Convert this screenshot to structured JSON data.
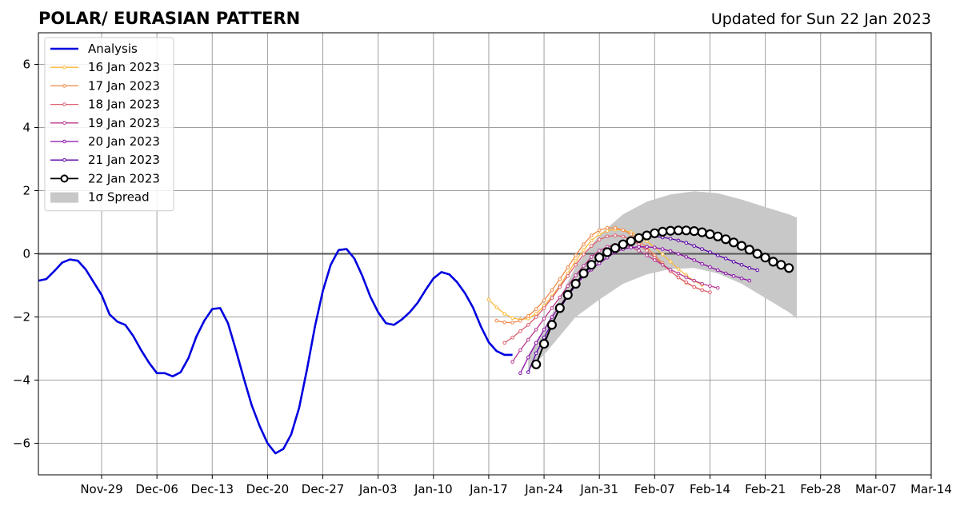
{
  "chart_data": {
    "type": "line",
    "title": "POLAR/ EURASIAN  PATTERN",
    "subtitle": "Updated for Sun 22 Jan 2023",
    "xlabel": "",
    "ylabel": "",
    "xlim": [
      "2022-11-21",
      "2023-03-14"
    ],
    "ylim": [
      -7,
      7
    ],
    "grid": true,
    "legend_position": "top-left",
    "x_ticks": [
      {
        "date": "2022-11-29",
        "label": "Nov-29"
      },
      {
        "date": "2022-12-06",
        "label": "Dec-06"
      },
      {
        "date": "2022-12-13",
        "label": "Dec-13"
      },
      {
        "date": "2022-12-20",
        "label": "Dec-20"
      },
      {
        "date": "2022-12-27",
        "label": "Dec-27"
      },
      {
        "date": "2023-01-03",
        "label": "Jan-03"
      },
      {
        "date": "2023-01-10",
        "label": "Jan-10"
      },
      {
        "date": "2023-01-17",
        "label": "Jan-17"
      },
      {
        "date": "2023-01-24",
        "label": "Jan-24"
      },
      {
        "date": "2023-01-31",
        "label": "Jan-31"
      },
      {
        "date": "2023-02-07",
        "label": "Feb-07"
      },
      {
        "date": "2023-02-14",
        "label": "Feb-14"
      },
      {
        "date": "2023-02-21",
        "label": "Feb-21"
      },
      {
        "date": "2023-02-28",
        "label": "Feb-28"
      },
      {
        "date": "2023-03-07",
        "label": "Mar-07"
      },
      {
        "date": "2023-03-14",
        "label": "Mar-14"
      }
    ],
    "y_ticks": [
      {
        "value": 6,
        "label": "6"
      },
      {
        "value": 4,
        "label": "4"
      },
      {
        "value": 2,
        "label": "2"
      },
      {
        "value": 0,
        "label": "0"
      },
      {
        "value": -2,
        "label": "−2"
      },
      {
        "value": -4,
        "label": "−4"
      },
      {
        "value": -6,
        "label": "−6"
      }
    ],
    "analysis": {
      "name": "Analysis",
      "color": "#0000e0",
      "start": "2022-11-21",
      "values": [
        -0.85,
        -0.8,
        -0.55,
        -0.28,
        -0.18,
        -0.22,
        -0.5,
        -0.9,
        -1.3,
        -1.92,
        -2.15,
        -2.25,
        -2.6,
        -3.05,
        -3.45,
        -3.78,
        -3.78,
        -3.88,
        -3.75,
        -3.3,
        -2.62,
        -2.12,
        -1.75,
        -1.72,
        -2.2,
        -3.05,
        -3.95,
        -4.8,
        -5.45,
        -6.0,
        -6.32,
        -6.18,
        -5.72,
        -4.88,
        -3.65,
        -2.3,
        -1.18,
        -0.35,
        0.12,
        0.15,
        -0.15,
        -0.7,
        -1.35,
        -1.85,
        -2.2,
        -2.25,
        -2.08,
        -1.85,
        -1.55,
        -1.15,
        -0.78,
        -0.58,
        -0.65,
        -0.9,
        -1.25,
        -1.7,
        -2.3,
        -2.8,
        -3.08,
        -3.2,
        -3.2
      ]
    },
    "spread": {
      "name": "1σ Spread",
      "color": "#c8c8c8",
      "points": [
        {
          "date": "2023-01-22",
          "upper": -3.2,
          "lower": -3.7
        },
        {
          "date": "2023-01-24",
          "upper": -2.4,
          "lower": -3.2
        },
        {
          "date": "2023-01-26",
          "upper": -1.4,
          "lower": -2.6
        },
        {
          "date": "2023-01-28",
          "upper": -0.4,
          "lower": -2.0
        },
        {
          "date": "2023-01-31",
          "upper": 0.6,
          "lower": -1.45
        },
        {
          "date": "2023-02-03",
          "upper": 1.25,
          "lower": -0.95
        },
        {
          "date": "2023-02-06",
          "upper": 1.65,
          "lower": -0.65
        },
        {
          "date": "2023-02-09",
          "upper": 1.88,
          "lower": -0.48
        },
        {
          "date": "2023-02-12",
          "upper": 1.98,
          "lower": -0.45
        },
        {
          "date": "2023-02-15",
          "upper": 1.92,
          "lower": -0.62
        },
        {
          "date": "2023-02-18",
          "upper": 1.72,
          "lower": -0.95
        },
        {
          "date": "2023-02-21",
          "upper": 1.48,
          "lower": -1.4
        },
        {
          "date": "2023-02-24",
          "upper": 1.25,
          "lower": -1.85
        },
        {
          "date": "2023-02-25",
          "upper": 1.15,
          "lower": -2.05
        }
      ]
    },
    "series": [
      {
        "name": "16 Jan 2023",
        "color": "#f8b83a",
        "start": "2023-01-17",
        "values": [
          -1.45,
          -1.7,
          -1.9,
          -2.03,
          -2.08,
          -2.05,
          -1.9,
          -1.65,
          -1.35,
          -1.0,
          -0.62,
          -0.22,
          0.12,
          0.42,
          0.62,
          0.73,
          0.77,
          0.75,
          0.68,
          0.57,
          0.4,
          0.2,
          -0.02,
          -0.25,
          -0.48,
          -0.68,
          -0.86,
          -0.98
        ]
      },
      {
        "name": "17 Jan 2023",
        "color": "#ef8848",
        "start": "2023-01-18",
        "values": [
          -2.12,
          -2.17,
          -2.18,
          -2.12,
          -1.97,
          -1.75,
          -1.47,
          -1.15,
          -0.8,
          -0.43,
          -0.05,
          0.3,
          0.58,
          0.75,
          0.82,
          0.82,
          0.75,
          0.62,
          0.42,
          0.2,
          -0.05,
          -0.3,
          -0.55,
          -0.75,
          -0.92,
          -1.05,
          -1.15
        ]
      },
      {
        "name": "18 Jan 2023",
        "color": "#dc5f6e",
        "start": "2023-01-19",
        "values": [
          -2.82,
          -2.65,
          -2.45,
          -2.25,
          -2.0,
          -1.72,
          -1.4,
          -1.05,
          -0.7,
          -0.35,
          -0.02,
          0.25,
          0.45,
          0.55,
          0.58,
          0.55,
          0.45,
          0.3,
          0.1,
          -0.12,
          -0.35,
          -0.55,
          -0.75,
          -0.9,
          -1.05,
          -1.15,
          -1.22
        ]
      },
      {
        "name": "19 Jan 2023",
        "color": "#b8398f",
        "start": "2023-01-20",
        "values": [
          -3.42,
          -3.05,
          -2.72,
          -2.4,
          -2.05,
          -1.72,
          -1.38,
          -1.02,
          -0.68,
          -0.38,
          -0.1,
          0.1,
          0.22,
          0.28,
          0.28,
          0.22,
          0.1,
          -0.05,
          -0.2,
          -0.35,
          -0.5,
          -0.62,
          -0.75,
          -0.85,
          -0.95,
          -1.02,
          -1.08
        ]
      },
      {
        "name": "20 Jan 2023",
        "color": "#8b0fa8",
        "start": "2023-01-21",
        "values": [
          -3.78,
          -3.28,
          -2.82,
          -2.4,
          -2.0,
          -1.65,
          -1.3,
          -0.98,
          -0.72,
          -0.5,
          -0.3,
          -0.12,
          0.05,
          0.15,
          0.2,
          0.22,
          0.22,
          0.2,
          0.15,
          0.08,
          0.0,
          -0.1,
          -0.2,
          -0.32,
          -0.42,
          -0.52,
          -0.62,
          -0.7,
          -0.78,
          -0.85
        ]
      },
      {
        "name": "21 Jan 2023",
        "color": "#5a00a8",
        "start": "2023-01-22",
        "values": [
          -3.75,
          -3.15,
          -2.65,
          -2.2,
          -1.75,
          -1.35,
          -1.0,
          -0.68,
          -0.38,
          -0.12,
          0.08,
          0.22,
          0.35,
          0.45,
          0.52,
          0.55,
          0.55,
          0.52,
          0.48,
          0.42,
          0.35,
          0.25,
          0.15,
          0.05,
          -0.05,
          -0.15,
          -0.25,
          -0.35,
          -0.45,
          -0.52
        ]
      },
      {
        "name": "22 Jan 2023",
        "color": "#000000",
        "start": "2023-01-23",
        "values": [
          -3.5,
          -2.85,
          -2.25,
          -1.72,
          -1.3,
          -0.95,
          -0.62,
          -0.35,
          -0.12,
          0.05,
          0.18,
          0.3,
          0.4,
          0.5,
          0.58,
          0.65,
          0.7,
          0.73,
          0.74,
          0.74,
          0.72,
          0.68,
          0.62,
          0.55,
          0.46,
          0.36,
          0.25,
          0.13,
          0.0,
          -0.12,
          -0.25,
          -0.35,
          -0.45
        ]
      }
    ]
  }
}
